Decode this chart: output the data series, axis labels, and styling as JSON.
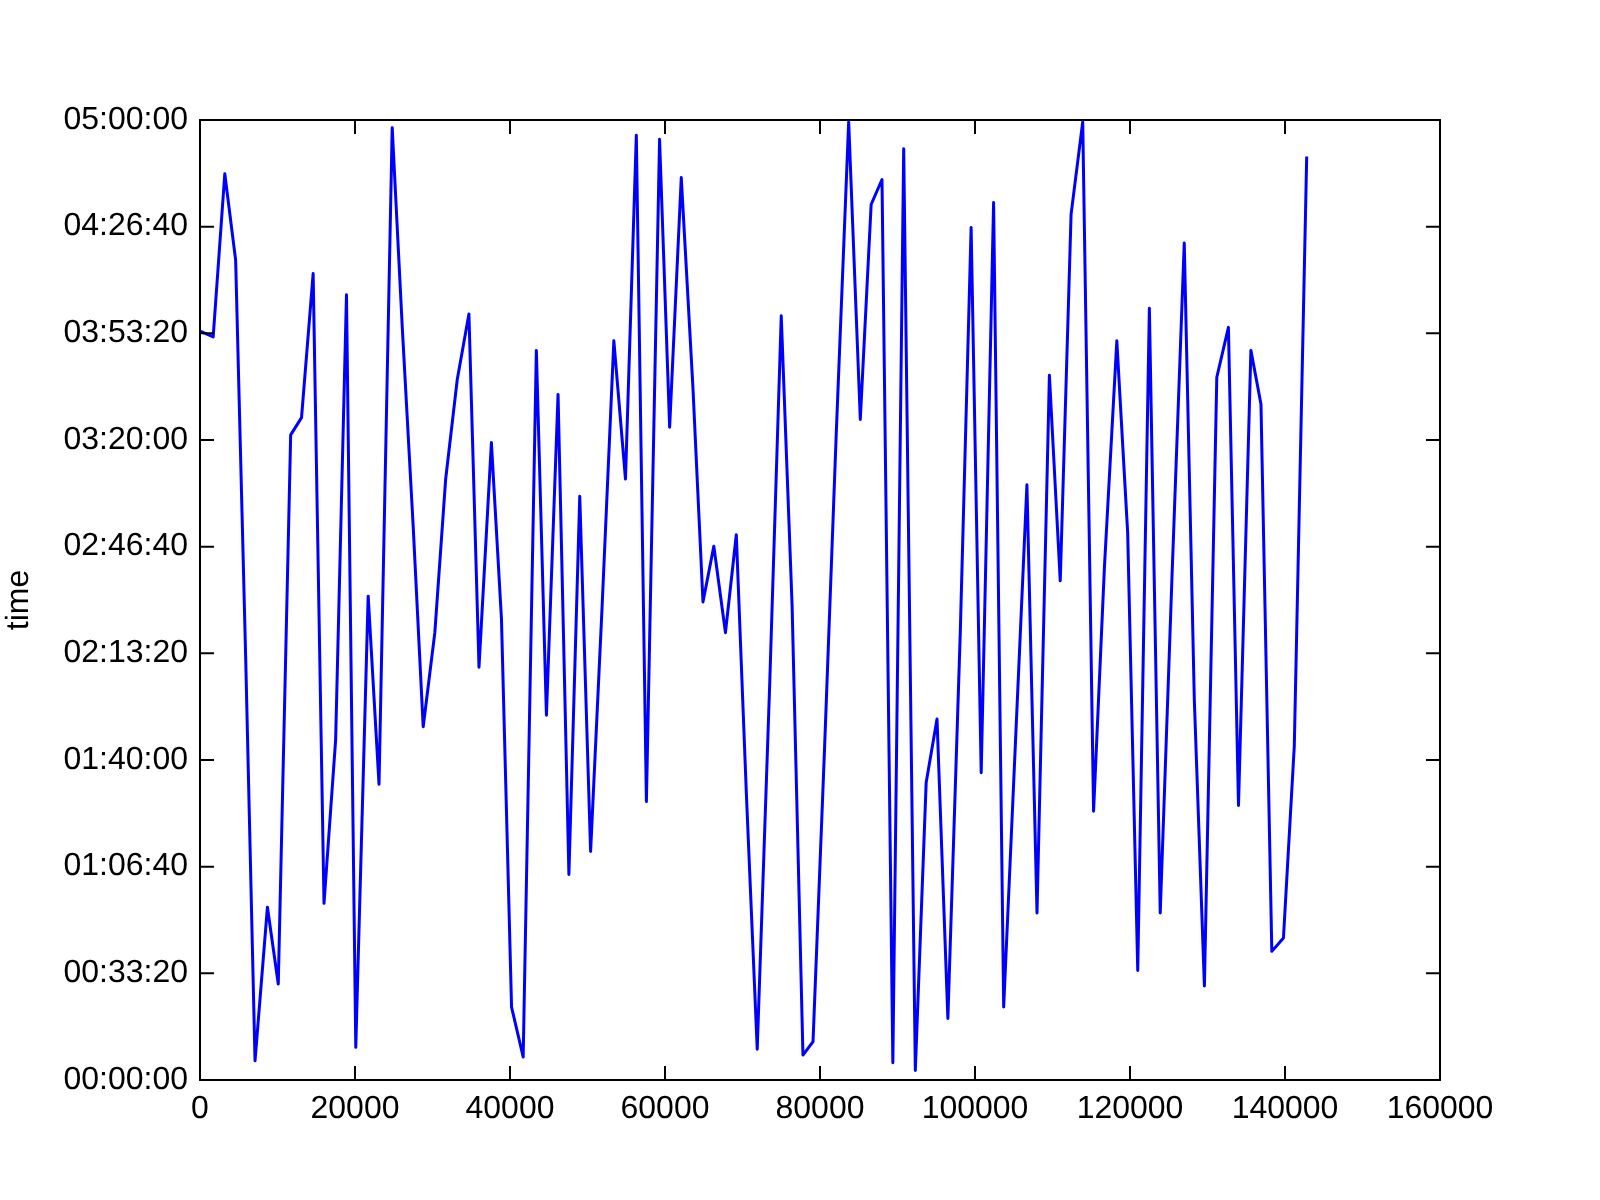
{
  "chart_data": {
    "type": "line",
    "ylabel": "time",
    "x": [
      0,
      1700,
      3200,
      4600,
      5900,
      7100,
      8700,
      10100,
      11700,
      13100,
      14600,
      16000,
      17500,
      18900,
      20100,
      21700,
      23100,
      24800,
      26100,
      27500,
      28800,
      30300,
      31700,
      33200,
      34700,
      36000,
      37600,
      38900,
      40200,
      41700,
      43400,
      44700,
      46200,
      47600,
      49000,
      50400,
      51900,
      53400,
      54900,
      56300,
      57600,
      59300,
      60600,
      62100,
      63600,
      64900,
      66300,
      67800,
      69200,
      70500,
      71900,
      73500,
      75000,
      76400,
      77800,
      79100,
      80600,
      82100,
      83700,
      85200,
      86600,
      88000,
      89400,
      90800,
      92300,
      93700,
      95100,
      96500,
      98100,
      99500,
      100800,
      102400,
      103700,
      105200,
      106700,
      108000,
      109600,
      111000,
      112400,
      113900,
      115300,
      116700,
      118300,
      119700,
      121000,
      122500,
      123900,
      125400,
      127000,
      128300,
      129600,
      131200,
      132700,
      134000,
      135600,
      136900,
      138300,
      139800,
      141200,
      142800
    ],
    "values": [
      3.9,
      3.87,
      4.72,
      4.27,
      2.19,
      0.1,
      0.9,
      0.5,
      3.36,
      3.45,
      4.2,
      0.92,
      1.77,
      4.09,
      0.17,
      2.52,
      1.54,
      4.96,
      3.92,
      2.89,
      1.84,
      2.33,
      3.13,
      3.65,
      3.99,
      2.15,
      3.32,
      2.4,
      0.38,
      0.12,
      3.8,
      1.9,
      3.57,
      1.07,
      3.04,
      1.19,
      2.48,
      3.85,
      3.13,
      4.92,
      1.45,
      4.9,
      3.4,
      4.7,
      3.61,
      2.49,
      2.78,
      2.33,
      2.84,
      1.49,
      0.16,
      2.05,
      3.98,
      2.47,
      0.13,
      0.2,
      1.74,
      3.37,
      4.99,
      3.44,
      4.56,
      4.69,
      0.09,
      4.85,
      0.05,
      1.55,
      1.88,
      0.32,
      2.33,
      4.44,
      1.6,
      4.57,
      0.38,
      1.74,
      3.1,
      0.87,
      3.67,
      2.6,
      4.51,
      4.99,
      1.4,
      2.67,
      3.85,
      2.85,
      0.57,
      4.02,
      0.87,
      2.6,
      4.36,
      1.98,
      0.49,
      3.66,
      3.92,
      1.43,
      3.8,
      3.52,
      0.67,
      0.74,
      1.74,
      4.81
    ],
    "color": "#0000ff",
    "xlim": [
      0,
      160000
    ],
    "xticks": [
      0,
      20000,
      40000,
      60000,
      80000,
      100000,
      120000,
      140000,
      160000
    ],
    "ylim": [
      0,
      5
    ],
    "yticks": [
      {
        "value": 0,
        "label": "00:00:00"
      },
      {
        "value": 0.5556,
        "label": "00:33:20"
      },
      {
        "value": 1.1111,
        "label": "01:06:40"
      },
      {
        "value": 1.6667,
        "label": "01:40:00"
      },
      {
        "value": 2.2222,
        "label": "02:13:20"
      },
      {
        "value": 2.7778,
        "label": "02:46:40"
      },
      {
        "value": 3.3333,
        "label": "03:20:00"
      },
      {
        "value": 3.8889,
        "label": "03:53:20"
      },
      {
        "value": 4.4444,
        "label": "04:26:40"
      },
      {
        "value": 5,
        "label": "05:00:00"
      }
    ],
    "grid": false,
    "legend": false,
    "marker": "none",
    "line_style": "solid"
  }
}
